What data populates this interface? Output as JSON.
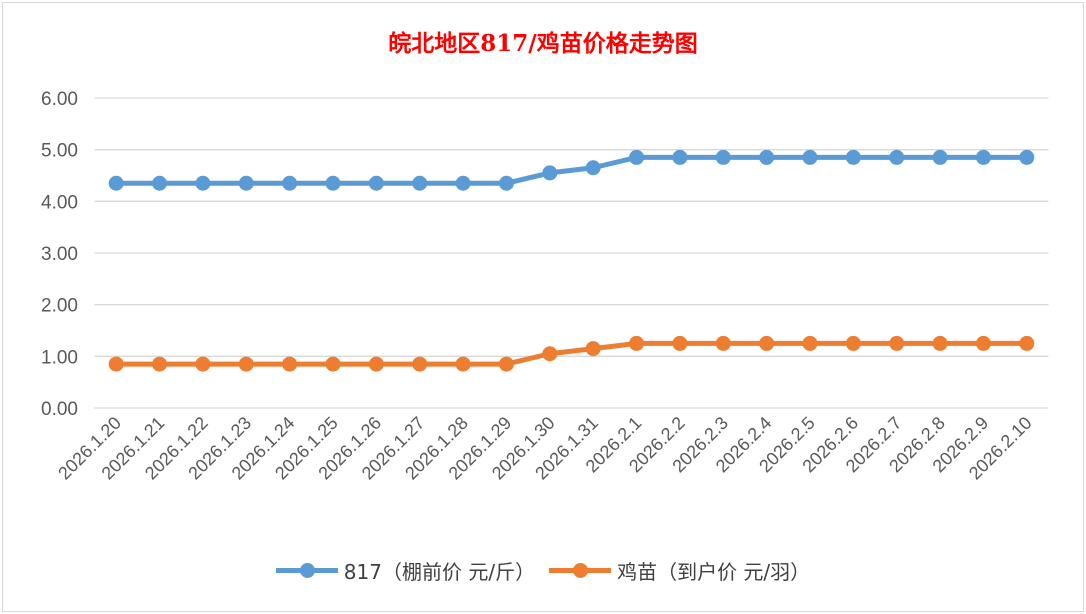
{
  "chart_data": {
    "type": "line",
    "title": "皖北地区817/鸡苗价格走势图",
    "xlabel": "",
    "ylabel": "",
    "ylim": [
      0,
      6
    ],
    "yticks": [
      "0.00",
      "1.00",
      "2.00",
      "3.00",
      "4.00",
      "5.00",
      "6.00"
    ],
    "grid": true,
    "legend": "bottom",
    "categories": [
      "2026.1.20",
      "2026.1.21",
      "2026.1.22",
      "2026.1.23",
      "2026.1.24",
      "2026.1.25",
      "2026.1.26",
      "2026.1.27",
      "2026.1.28",
      "2026.1.29",
      "2026.1.30",
      "2026.1.31",
      "2026.2.1",
      "2026.2.2",
      "2026.2.3",
      "2026.2.4",
      "2026.2.5",
      "2026.2.6",
      "2026.2.7",
      "2026.2.8",
      "2026.2.9",
      "2026.2.10"
    ],
    "series": [
      {
        "name": "817（棚前价 元/斤）",
        "color": "#5b9bd5",
        "values": [
          4.35,
          4.35,
          4.35,
          4.35,
          4.35,
          4.35,
          4.35,
          4.35,
          4.35,
          4.35,
          4.55,
          4.65,
          4.85,
          4.85,
          4.85,
          4.85,
          4.85,
          4.85,
          4.85,
          4.85,
          4.85,
          4.85
        ]
      },
      {
        "name": "鸡苗（到户价 元/羽）",
        "color": "#ed7d31",
        "values": [
          0.85,
          0.85,
          0.85,
          0.85,
          0.85,
          0.85,
          0.85,
          0.85,
          0.85,
          0.85,
          1.05,
          1.15,
          1.25,
          1.25,
          1.25,
          1.25,
          1.25,
          1.25,
          1.25,
          1.25,
          1.25,
          1.25
        ]
      }
    ]
  }
}
